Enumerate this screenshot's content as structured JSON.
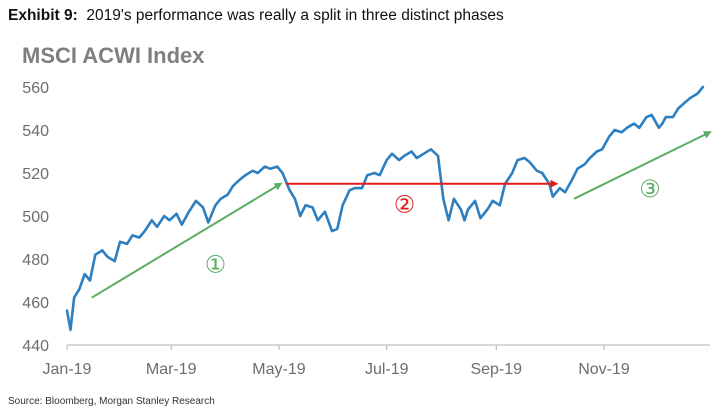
{
  "header": {
    "exhibit_label": "Exhibit 9:",
    "exhibit_text": "2019's performance was really a split in three distinct phases"
  },
  "footer": {
    "source": "Source: Bloomberg, Morgan Stanley Research"
  },
  "colors": {
    "line": "#2e7fc0",
    "red": "#e31b1b",
    "green": "#5aae61",
    "tick": "#6d6d6d",
    "grid": "#d9d9d9"
  },
  "chart_data": {
    "type": "line",
    "title": "MSCI ACWI Index",
    "xlabel": "",
    "ylabel": "",
    "ylim": [
      440,
      560
    ],
    "yticks": [
      440,
      460,
      480,
      500,
      520,
      540,
      560
    ],
    "xticks": [
      {
        "label": "Jan-19",
        "date": "2019-01-01"
      },
      {
        "label": "Mar-19",
        "date": "2019-03-01"
      },
      {
        "label": "May-19",
        "date": "2019-05-01"
      },
      {
        "label": "Jul-19",
        "date": "2019-07-01"
      },
      {
        "label": "Sep-19",
        "date": "2019-09-01"
      },
      {
        "label": "Nov-19",
        "date": "2019-11-01"
      }
    ],
    "grid": false,
    "series": [
      {
        "color": "#2e7fc0",
        "points": [
          [
            "2019-01-01",
            456
          ],
          [
            "2019-01-03",
            447
          ],
          [
            "2019-01-05",
            462
          ],
          [
            "2019-01-08",
            466
          ],
          [
            "2019-01-11",
            473
          ],
          [
            "2019-01-14",
            470
          ],
          [
            "2019-01-17",
            482
          ],
          [
            "2019-01-21",
            484
          ],
          [
            "2019-01-24",
            481
          ],
          [
            "2019-01-28",
            479
          ],
          [
            "2019-01-31",
            488
          ],
          [
            "2019-02-04",
            487
          ],
          [
            "2019-02-07",
            491
          ],
          [
            "2019-02-11",
            490
          ],
          [
            "2019-02-14",
            493
          ],
          [
            "2019-02-18",
            498
          ],
          [
            "2019-02-21",
            495
          ],
          [
            "2019-02-25",
            500
          ],
          [
            "2019-02-28",
            498
          ],
          [
            "2019-03-04",
            501
          ],
          [
            "2019-03-07",
            496
          ],
          [
            "2019-03-11",
            502
          ],
          [
            "2019-03-15",
            507
          ],
          [
            "2019-03-19",
            504
          ],
          [
            "2019-03-22",
            497
          ],
          [
            "2019-03-26",
            505
          ],
          [
            "2019-03-29",
            508
          ],
          [
            "2019-04-02",
            510
          ],
          [
            "2019-04-05",
            514
          ],
          [
            "2019-04-09",
            517
          ],
          [
            "2019-04-12",
            519
          ],
          [
            "2019-04-16",
            521
          ],
          [
            "2019-04-19",
            520
          ],
          [
            "2019-04-23",
            523
          ],
          [
            "2019-04-26",
            522
          ],
          [
            "2019-04-30",
            523
          ],
          [
            "2019-05-03",
            520
          ],
          [
            "2019-05-07",
            512
          ],
          [
            "2019-05-10",
            508
          ],
          [
            "2019-05-13",
            500
          ],
          [
            "2019-05-16",
            505
          ],
          [
            "2019-05-20",
            504
          ],
          [
            "2019-05-23",
            498
          ],
          [
            "2019-05-27",
            502
          ],
          [
            "2019-05-31",
            493
          ],
          [
            "2019-06-03",
            494
          ],
          [
            "2019-06-06",
            505
          ],
          [
            "2019-06-10",
            512
          ],
          [
            "2019-06-13",
            513
          ],
          [
            "2019-06-17",
            513
          ],
          [
            "2019-06-20",
            519
          ],
          [
            "2019-06-24",
            520
          ],
          [
            "2019-06-27",
            519
          ],
          [
            "2019-07-01",
            526
          ],
          [
            "2019-07-04",
            529
          ],
          [
            "2019-07-08",
            526
          ],
          [
            "2019-07-11",
            528
          ],
          [
            "2019-07-15",
            530
          ],
          [
            "2019-07-18",
            527
          ],
          [
            "2019-07-22",
            529
          ],
          [
            "2019-07-26",
            531
          ],
          [
            "2019-07-30",
            528
          ],
          [
            "2019-08-02",
            508
          ],
          [
            "2019-08-05",
            498
          ],
          [
            "2019-08-08",
            508
          ],
          [
            "2019-08-12",
            503
          ],
          [
            "2019-08-14",
            498
          ],
          [
            "2019-08-16",
            503
          ],
          [
            "2019-08-20",
            507
          ],
          [
            "2019-08-23",
            499
          ],
          [
            "2019-08-27",
            503
          ],
          [
            "2019-08-30",
            507
          ],
          [
            "2019-09-03",
            505
          ],
          [
            "2019-09-06",
            515
          ],
          [
            "2019-09-10",
            520
          ],
          [
            "2019-09-13",
            526
          ],
          [
            "2019-09-17",
            527
          ],
          [
            "2019-09-20",
            525
          ],
          [
            "2019-09-24",
            521
          ],
          [
            "2019-09-27",
            520
          ],
          [
            "2019-10-01",
            515
          ],
          [
            "2019-10-03",
            509
          ],
          [
            "2019-10-07",
            513
          ],
          [
            "2019-10-10",
            511
          ],
          [
            "2019-10-14",
            517
          ],
          [
            "2019-10-17",
            522
          ],
          [
            "2019-10-21",
            524
          ],
          [
            "2019-10-24",
            527
          ],
          [
            "2019-10-28",
            530
          ],
          [
            "2019-10-31",
            531
          ],
          [
            "2019-11-04",
            537
          ],
          [
            "2019-11-07",
            540
          ],
          [
            "2019-11-11",
            539
          ],
          [
            "2019-11-14",
            541
          ],
          [
            "2019-11-18",
            543
          ],
          [
            "2019-11-21",
            541
          ],
          [
            "2019-11-25",
            546
          ],
          [
            "2019-11-28",
            547
          ],
          [
            "2019-12-02",
            541
          ],
          [
            "2019-12-04",
            543
          ],
          [
            "2019-12-06",
            546
          ],
          [
            "2019-12-10",
            546
          ],
          [
            "2019-12-13",
            550
          ],
          [
            "2019-12-17",
            553
          ],
          [
            "2019-12-20",
            555
          ],
          [
            "2019-12-24",
            557
          ],
          [
            "2019-12-27",
            560
          ]
        ]
      }
    ],
    "annotations": [
      {
        "kind": "arrow",
        "color": "#5aae61",
        "from": [
          "2019-01-15",
          462
        ],
        "to": [
          "2019-05-02",
          515
        ]
      },
      {
        "kind": "arrow",
        "color": "#e31b1b",
        "from": [
          "2019-05-05",
          515
        ],
        "to": [
          "2019-10-05",
          515
        ]
      },
      {
        "kind": "arrow",
        "color": "#5aae61",
        "from": [
          "2019-10-15",
          508
        ],
        "to": [
          "2019-12-31",
          539
        ]
      },
      {
        "kind": "label",
        "text": "①",
        "color": "#5aae61",
        "at": [
          "2019-03-26",
          477
        ]
      },
      {
        "kind": "label",
        "text": "②",
        "color": "#e31b1b",
        "at": [
          "2019-07-11",
          505
        ]
      },
      {
        "kind": "label",
        "text": "③",
        "color": "#5aae61",
        "at": [
          "2019-11-27",
          512
        ]
      }
    ]
  }
}
